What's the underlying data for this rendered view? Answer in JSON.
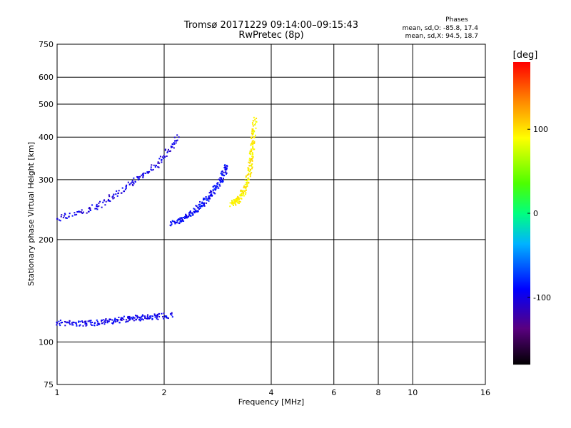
{
  "chart_data": {
    "type": "scatter",
    "title": "Tromsø 20171229 09:14:00–09:15:43",
    "subtitle": "RwPretec (8p)",
    "xlabel": "Frequency [MHz]",
    "ylabel": "Stationary phase Virtual Height [km]",
    "x_scale": "log",
    "y_scale": "log",
    "xlim": [
      1,
      16
    ],
    "ylim": [
      75,
      750
    ],
    "x_ticks": [
      1,
      2,
      4,
      6,
      8,
      10,
      16
    ],
    "y_ticks": [
      75,
      100,
      200,
      300,
      400,
      500,
      600,
      750
    ],
    "grid": true,
    "phases_box": {
      "heading": "Phases",
      "line1": "mean, sd,O: -85.8, 17.4",
      "line2": "mean, sd,X:  94.5, 18.7"
    },
    "colorbar": {
      "label": "[deg]",
      "min": -180,
      "max": 180,
      "ticks": [
        100,
        0,
        -100
      ]
    },
    "traces": [
      {
        "kind": "E-layer",
        "x": [
          1.0,
          1.2,
          1.4,
          1.6,
          1.8,
          2.1
        ],
        "y": [
          114,
          113,
          115,
          117,
          118,
          120
        ],
        "phase": -95
      },
      {
        "kind": "F-layer O",
        "x": [
          2.1,
          2.3,
          2.5,
          2.7,
          2.9,
          3.0
        ],
        "y": [
          222,
          232,
          248,
          270,
          300,
          330
        ],
        "phase": -90
      },
      {
        "kind": "F-layer X",
        "x": [
          3.1,
          3.25,
          3.4,
          3.5,
          3.55,
          3.6
        ],
        "y": [
          255,
          262,
          285,
          330,
          380,
          450
        ],
        "phase": 95
      },
      {
        "kind": "spread",
        "x": [
          1.0,
          1.3,
          1.6,
          1.9,
          2.2
        ],
        "y": [
          230,
          250,
          290,
          330,
          400
        ],
        "phase": -100
      }
    ]
  }
}
